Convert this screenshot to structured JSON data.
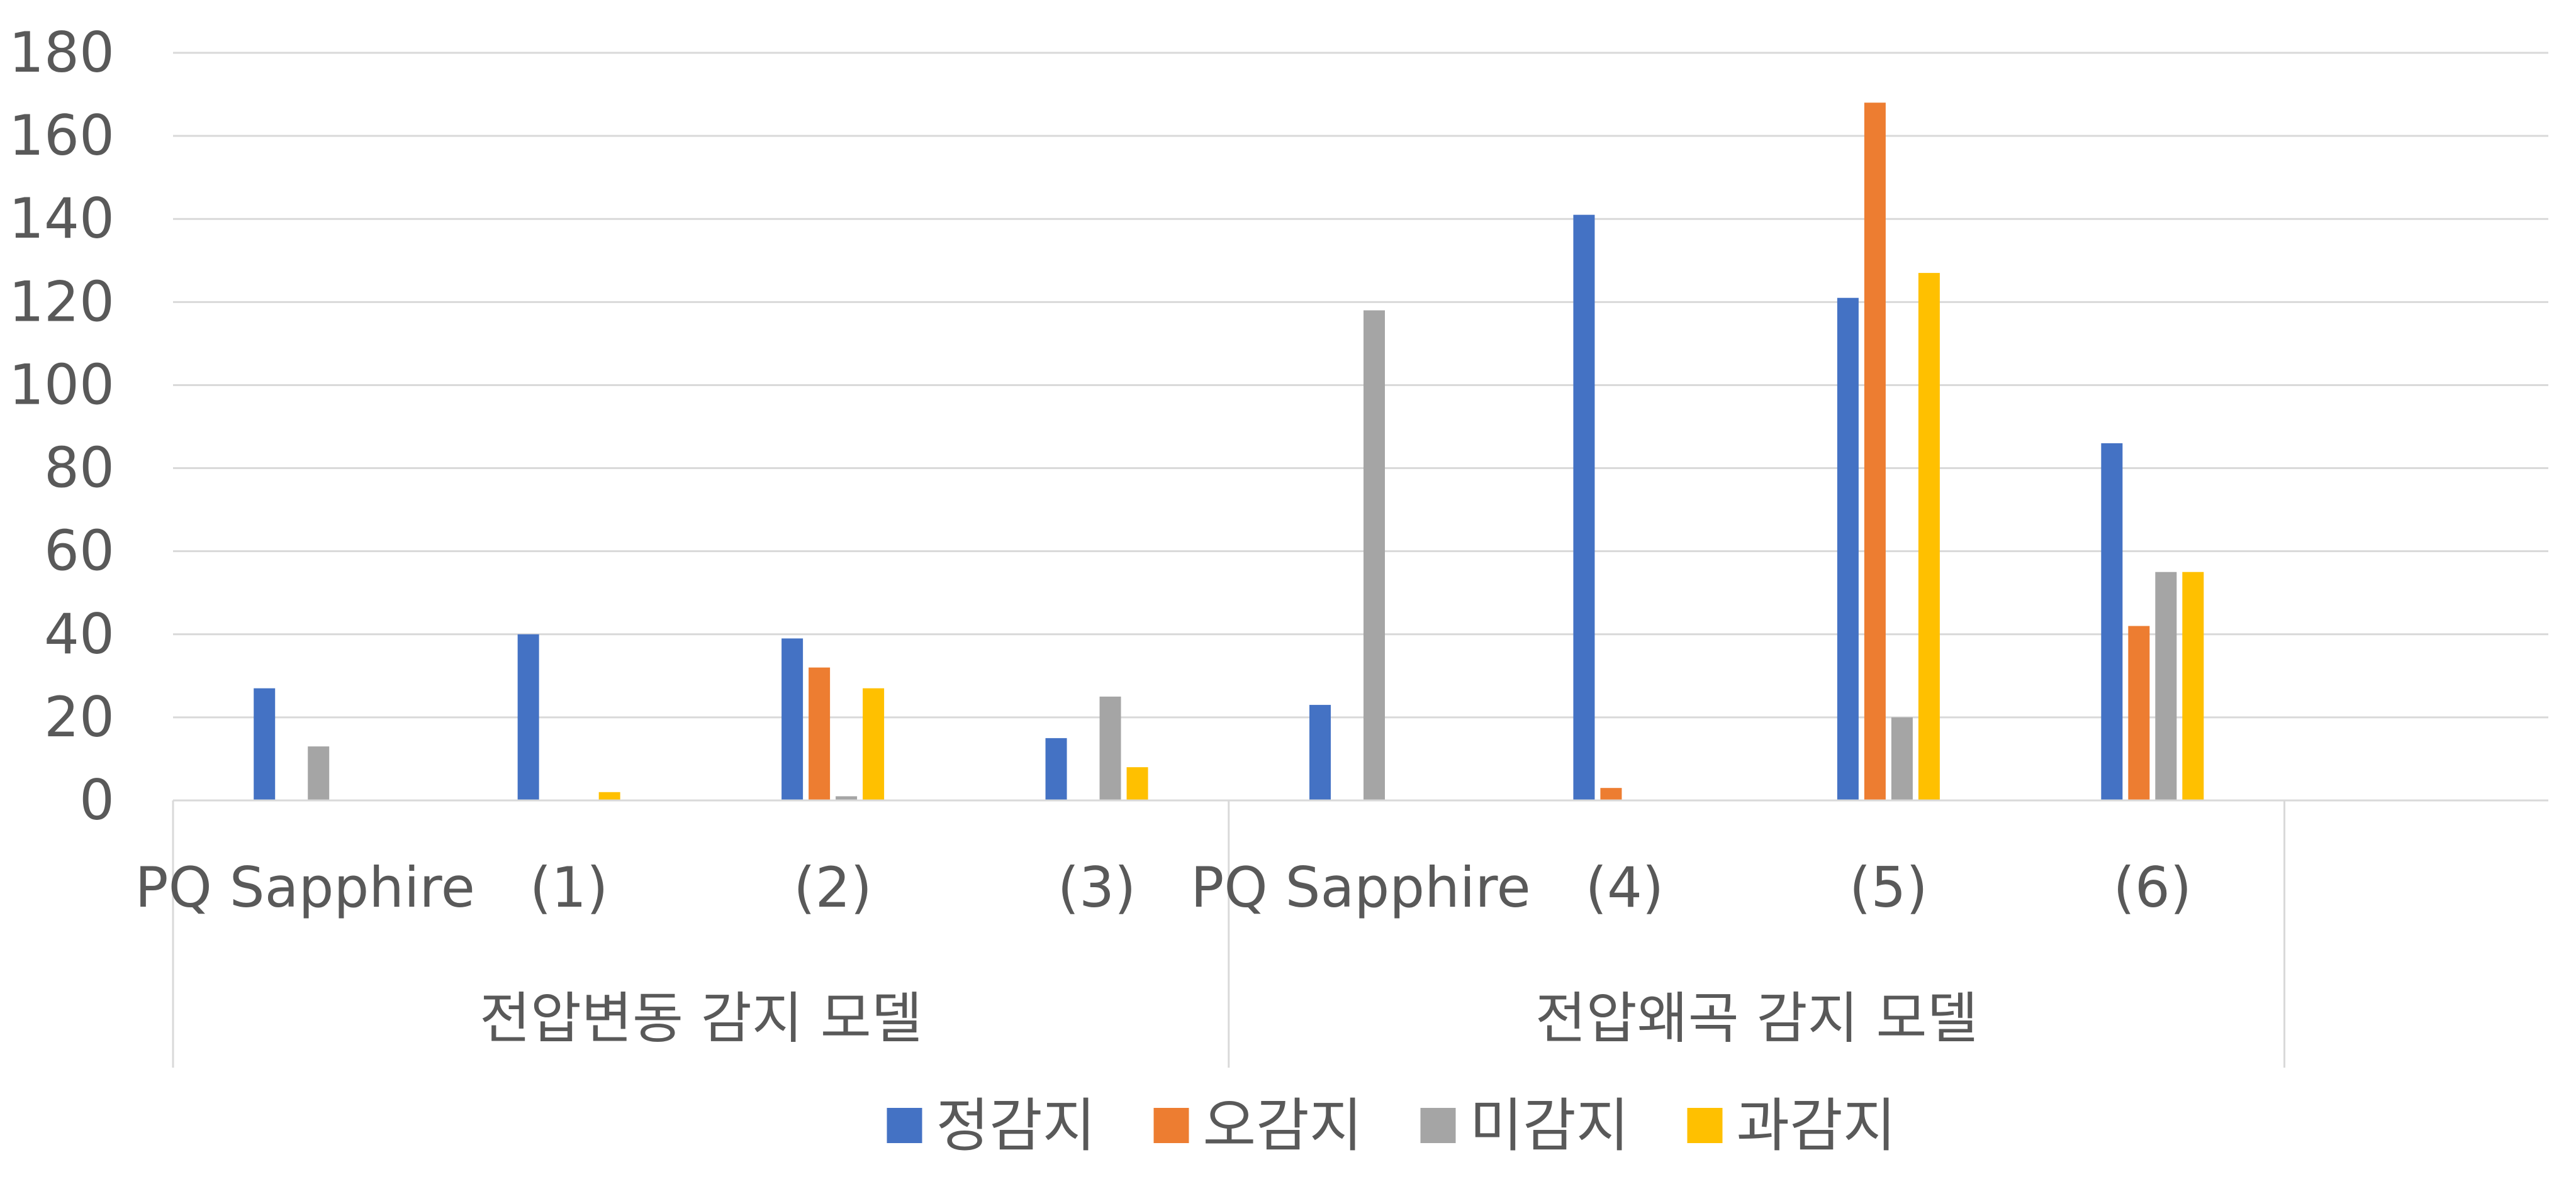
{
  "chart_data": {
    "type": "bar",
    "title": "",
    "xlabel": "",
    "ylabel": "",
    "ylim": [
      0,
      180
    ],
    "y_ticks": [
      0,
      20,
      40,
      60,
      80,
      100,
      120,
      140,
      160,
      180
    ],
    "grid": true,
    "legend_position": "bottom",
    "groups": [
      {
        "label": "전압변동 감지 모델",
        "categories": [
          "PQ Sapphire",
          "(1)",
          "(2)",
          "(3)"
        ]
      },
      {
        "label": "전압왜곡 감지 모델",
        "categories": [
          "PQ Sapphire",
          "(4)",
          "(5)",
          "(6)"
        ]
      }
    ],
    "categories": [
      "PQ Sapphire",
      "(1)",
      "(2)",
      "(3)",
      "PQ Sapphire",
      "(4)",
      "(5)",
      "(6)"
    ],
    "series": [
      {
        "name": "정감지",
        "color": "#4472C4",
        "values": [
          27,
          40,
          39,
          15,
          23,
          141,
          121,
          86
        ]
      },
      {
        "name": "오감지",
        "color": "#ED7D31",
        "values": [
          0,
          0,
          32,
          0,
          0,
          3,
          168,
          42
        ]
      },
      {
        "name": "미감지",
        "color": "#A5A5A5",
        "values": [
          13,
          0,
          1,
          25,
          118,
          0,
          20,
          55
        ]
      },
      {
        "name": "과감지",
        "color": "#FFC000",
        "values": [
          0,
          2,
          27,
          8,
          0,
          0,
          127,
          55
        ]
      }
    ]
  }
}
